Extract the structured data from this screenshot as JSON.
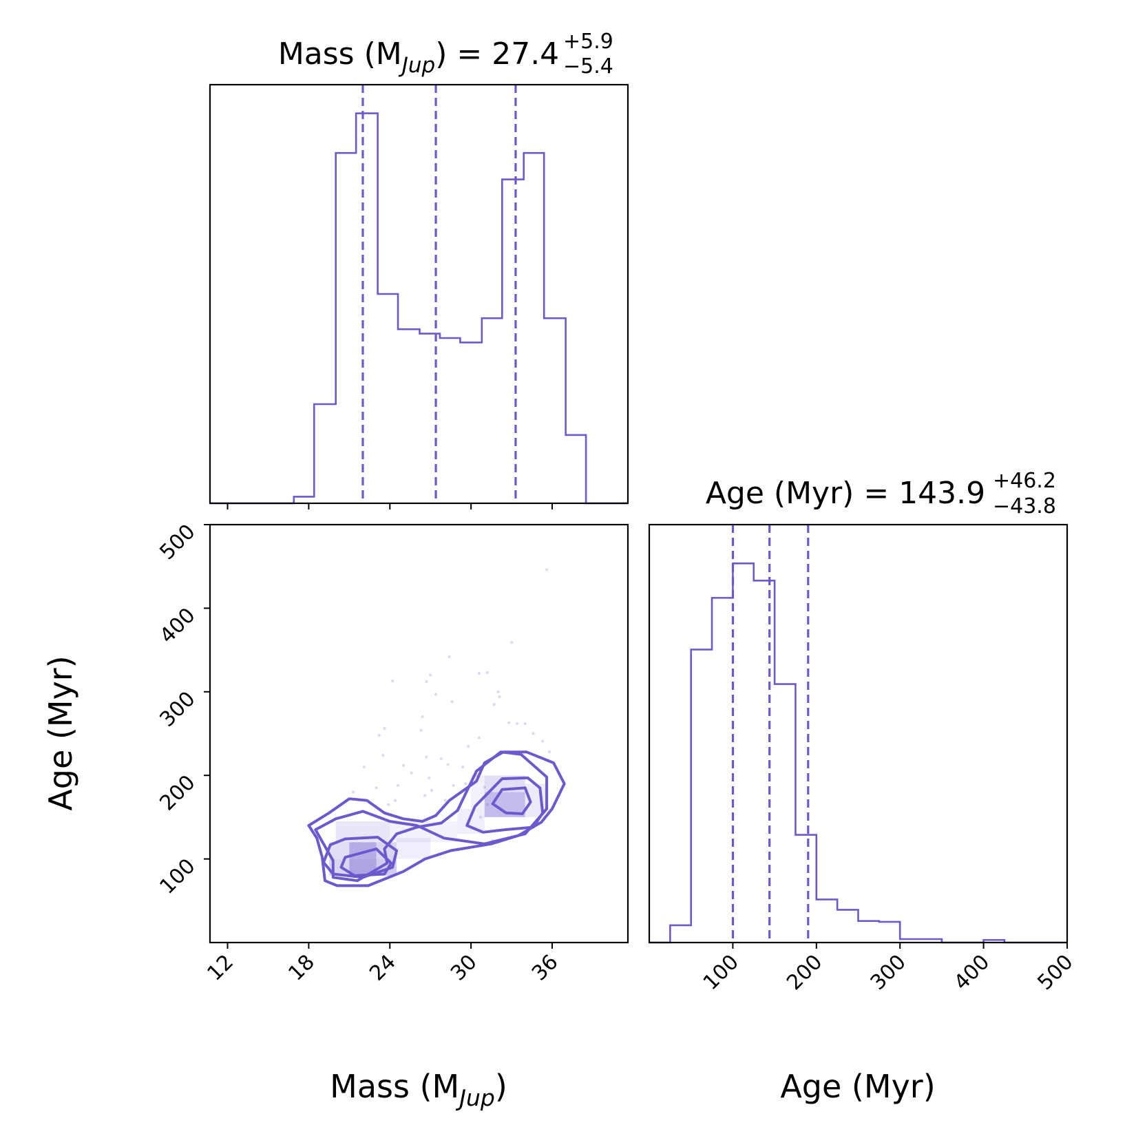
{
  "chart_data": {
    "type": "corner",
    "color": "#6a5acd",
    "parameters": [
      {
        "name": "mass",
        "label": "Mass (M",
        "label_sub": "Jup",
        "label_close": ")",
        "range": [
          10.7,
          41.6
        ],
        "ticks": [
          12,
          18,
          24,
          30,
          36
        ],
        "tick_labels": [
          "12",
          "18",
          "24",
          "30",
          "36"
        ],
        "title_prefix": "Mass (M",
        "title_sub": "Jup",
        "title_mid": ") = ",
        "median": "27.4",
        "plus": "+5.9",
        "minus": "−5.4",
        "quantiles": [
          22.0,
          27.4,
          33.3
        ],
        "hist": {
          "edges": [
            10.7,
            12.2,
            13.8,
            15.3,
            16.9,
            18.4,
            20.0,
            21.5,
            23.1,
            24.6,
            26.2,
            27.7,
            29.2,
            30.8,
            32.3,
            33.9,
            35.4,
            37.0,
            38.5,
            40.1,
            41.6
          ],
          "counts": [
            0,
            0,
            0,
            0,
            0.015,
            0.225,
            0.795,
            0.885,
            0.475,
            0.395,
            0.385,
            0.375,
            0.365,
            0.42,
            0.735,
            0.795,
            0.42,
            0.155,
            0,
            0
          ]
        }
      },
      {
        "name": "age",
        "label": "Age (Myr)",
        "range": [
          0,
          500
        ],
        "ticks": [
          100,
          200,
          300,
          400,
          500
        ],
        "tick_labels": [
          "100",
          "200",
          "300",
          "400",
          "500"
        ],
        "title_prefix": "Age (Myr) = ",
        "median": "143.9",
        "plus": "+46.2",
        "minus": "−43.8",
        "quantiles": [
          100.1,
          143.9,
          190.1
        ],
        "hist": {
          "edges": [
            0,
            25,
            50,
            75,
            100,
            125,
            150,
            175,
            200,
            225,
            250,
            275,
            300,
            325,
            350,
            375,
            400,
            425,
            450,
            475,
            500
          ],
          "counts": [
            0,
            0.02,
            0.34,
            0.4,
            0.44,
            0.42,
            0.3,
            0.125,
            0.05,
            0.038,
            0.025,
            0.024,
            0.004,
            0.004,
            0,
            0,
            0.003,
            0,
            0,
            0
          ]
        }
      }
    ],
    "joint": {
      "x": "mass",
      "y": "age",
      "density_cells": [
        {
          "x0": 19.5,
          "x1": 21.0,
          "y0": 80,
          "y1": 100,
          "a": 0.25
        },
        {
          "x0": 21.0,
          "x1": 23.0,
          "y0": 80,
          "y1": 100,
          "a": 0.55
        },
        {
          "x0": 23.0,
          "x1": 24.5,
          "y0": 80,
          "y1": 100,
          "a": 0.3
        },
        {
          "x0": 19.5,
          "x1": 21.0,
          "y0": 100,
          "y1": 120,
          "a": 0.2
        },
        {
          "x0": 21.0,
          "x1": 23.0,
          "y0": 100,
          "y1": 120,
          "a": 0.5
        },
        {
          "x0": 23.0,
          "x1": 24.5,
          "y0": 100,
          "y1": 120,
          "a": 0.25
        },
        {
          "x0": 24.5,
          "x1": 27.0,
          "y0": 100,
          "y1": 125,
          "a": 0.1
        },
        {
          "x0": 20.0,
          "x1": 24.0,
          "y0": 120,
          "y1": 145,
          "a": 0.15
        },
        {
          "x0": 24.0,
          "x1": 29.0,
          "y0": 120,
          "y1": 145,
          "a": 0.08
        },
        {
          "x0": 29.0,
          "x1": 31.0,
          "y0": 130,
          "y1": 160,
          "a": 0.1
        },
        {
          "x0": 31.0,
          "x1": 34.0,
          "y0": 150,
          "y1": 180,
          "a": 0.4
        },
        {
          "x0": 31.0,
          "x1": 34.0,
          "y0": 180,
          "y1": 200,
          "a": 0.2
        },
        {
          "x0": 34.0,
          "x1": 35.5,
          "y0": 150,
          "y1": 190,
          "a": 0.12
        },
        {
          "x0": 30.0,
          "x1": 31.0,
          "y0": 160,
          "y1": 200,
          "a": 0.08
        }
      ],
      "contours": [
        [
          [
            20.7,
            102
          ],
          [
            23.0,
            112
          ],
          [
            24.1,
            95
          ],
          [
            23.6,
            82
          ],
          [
            21.4,
            80
          ],
          [
            20.4,
            90
          ]
        ],
        [
          [
            31.6,
            166
          ],
          [
            32.3,
            183
          ],
          [
            34.0,
            185
          ],
          [
            34.4,
            168
          ],
          [
            33.8,
            154
          ],
          [
            32.6,
            155
          ]
        ],
        [
          [
            19.6,
            117
          ],
          [
            20.7,
            124
          ],
          [
            23.1,
            126
          ],
          [
            24.5,
            110
          ],
          [
            24.2,
            90
          ],
          [
            22.0,
            78
          ],
          [
            19.8,
            82
          ],
          [
            19.1,
            96
          ]
        ],
        [
          [
            29.7,
            140
          ],
          [
            30.3,
            163
          ],
          [
            32.3,
            196
          ],
          [
            34.2,
            197
          ],
          [
            35.1,
            185
          ],
          [
            35.3,
            155
          ],
          [
            34.6,
            138
          ],
          [
            32.5,
            135
          ],
          [
            30.9,
            132
          ]
        ],
        [
          [
            18.5,
            135
          ],
          [
            20.0,
            148
          ],
          [
            22.0,
            157
          ],
          [
            24.0,
            145
          ],
          [
            26.0,
            140
          ],
          [
            28.0,
            125
          ],
          [
            31.0,
            118
          ],
          [
            34.0,
            130
          ],
          [
            35.6,
            160
          ],
          [
            35.6,
            198
          ],
          [
            33.7,
            225
          ],
          [
            32.2,
            228
          ],
          [
            30.4,
            205
          ],
          [
            29.0,
            158
          ],
          [
            27.8,
            143
          ],
          [
            26.0,
            138
          ],
          [
            24.5,
            130
          ],
          [
            23.6,
            112
          ],
          [
            23.8,
            95
          ],
          [
            21.6,
            74
          ],
          [
            19.8,
            78
          ],
          [
            19.8,
            98
          ]
        ],
        [
          [
            18.0,
            140
          ],
          [
            19.5,
            155
          ],
          [
            21.0,
            172
          ],
          [
            22.3,
            170
          ],
          [
            23.6,
            155
          ],
          [
            25.0,
            148
          ],
          [
            26.4,
            145
          ],
          [
            27.4,
            152
          ],
          [
            28.4,
            170
          ],
          [
            30.4,
            193
          ],
          [
            31.0,
            215
          ],
          [
            32.4,
            228
          ],
          [
            34.1,
            228
          ],
          [
            36.1,
            215
          ],
          [
            36.9,
            190
          ],
          [
            36.0,
            160
          ],
          [
            35.2,
            144
          ],
          [
            33.5,
            128
          ],
          [
            31.5,
            118
          ],
          [
            28.5,
            110
          ],
          [
            26.6,
            100
          ],
          [
            25.0,
            85
          ],
          [
            22.4,
            68
          ],
          [
            20.1,
            68
          ],
          [
            19.2,
            74
          ],
          [
            19.0,
            102
          ],
          [
            18.6,
            125
          ]
        ]
      ],
      "scatter": [
        [
          35.6,
          446
        ],
        [
          33.0,
          359
        ],
        [
          28.4,
          342
        ],
        [
          31.2,
          323
        ],
        [
          30.6,
          322
        ],
        [
          27.0,
          320
        ],
        [
          26.7,
          312
        ],
        [
          24.2,
          313
        ],
        [
          32.0,
          300
        ],
        [
          27.4,
          297
        ],
        [
          32.1,
          294
        ],
        [
          28.6,
          288
        ],
        [
          31.7,
          285
        ],
        [
          26.4,
          270
        ],
        [
          32.8,
          263
        ],
        [
          34.0,
          262
        ],
        [
          33.4,
          262
        ],
        [
          23.6,
          256
        ],
        [
          26.3,
          254
        ],
        [
          23.2,
          248
        ],
        [
          30.6,
          245
        ],
        [
          34.6,
          250
        ],
        [
          35.3,
          241
        ],
        [
          29.8,
          235
        ],
        [
          35.8,
          228
        ],
        [
          23.5,
          224
        ],
        [
          27.8,
          220
        ],
        [
          26.7,
          222
        ],
        [
          28.3,
          213
        ],
        [
          25.0,
          212
        ],
        [
          22.1,
          210
        ],
        [
          29.4,
          210
        ],
        [
          25.6,
          203
        ],
        [
          26.9,
          197
        ],
        [
          30.4,
          200
        ],
        [
          29.6,
          190
        ],
        [
          23.0,
          185
        ],
        [
          24.6,
          188
        ],
        [
          27.1,
          182
        ],
        [
          26.6,
          176
        ],
        [
          24.4,
          170
        ],
        [
          21.3,
          180
        ],
        [
          23.9,
          165
        ],
        [
          31.2,
          165
        ],
        [
          30.7,
          150
        ],
        [
          31.6,
          122
        ],
        [
          31.4,
          118
        ],
        [
          28.1,
          170
        ],
        [
          31.0,
          186
        ],
        [
          28.7,
          188
        ]
      ]
    }
  }
}
